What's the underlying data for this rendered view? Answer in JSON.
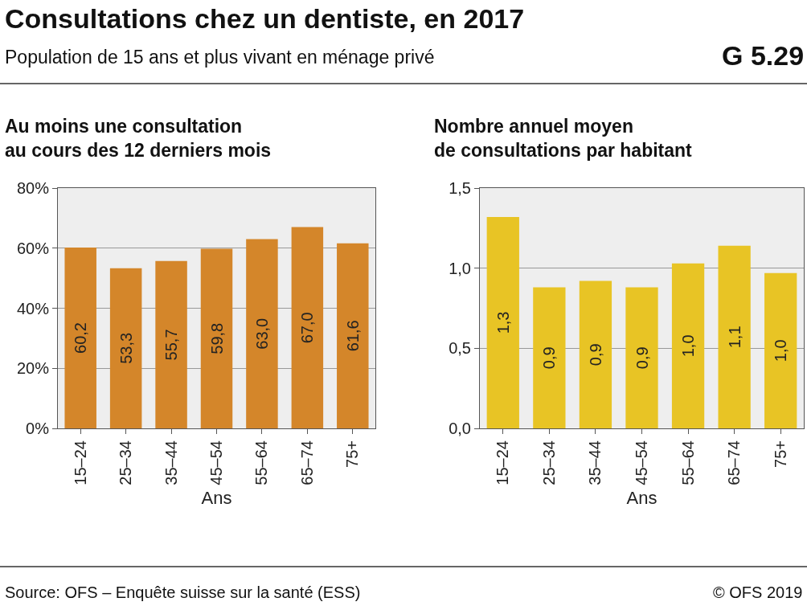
{
  "chart_data": [
    {
      "type": "bar",
      "title": "Au moins une consultation\nau cours des 12 derniers mois",
      "xlabel": "Ans",
      "categories": [
        "15–24",
        "25–34",
        "35–44",
        "45–54",
        "55–64",
        "65–74",
        "75+"
      ],
      "values": [
        60.2,
        53.3,
        55.7,
        59.8,
        63.0,
        67.0,
        61.6
      ],
      "value_labels": [
        "60,2",
        "53,3",
        "55,7",
        "59,8",
        "63,0",
        "67,0",
        "61,6"
      ],
      "color": "#d4862a",
      "ylim": [
        0,
        80
      ],
      "yticks": [
        {
          "value": 0,
          "label": "0%"
        },
        {
          "value": 20,
          "label": "20%"
        },
        {
          "value": 40,
          "label": "40%"
        },
        {
          "value": 60,
          "label": "60%"
        },
        {
          "value": 80,
          "label": "80%"
        }
      ],
      "grid": "y",
      "annotations": [
        "Consultations chez un dentiste, en 2017",
        "Population de 15 ans et plus vivant en ménage privé",
        "G 5.29",
        "Source: OFS – Enquête suisse sur la santé (ESS)",
        "© OFS 2019"
      ]
    },
    {
      "type": "bar",
      "title": "Nombre annuel moyen\nde consultations par habitant",
      "xlabel": "Ans",
      "categories": [
        "15–24",
        "25–34",
        "35–44",
        "45–54",
        "55–64",
        "65–74",
        "75+"
      ],
      "values": [
        1.32,
        0.88,
        0.92,
        0.88,
        1.03,
        1.14,
        0.97
      ],
      "value_labels": [
        "1,3",
        "0,9",
        "0,9",
        "0,9",
        "1,0",
        "1,1",
        "1,0"
      ],
      "color": "#e8c425",
      "ylim": [
        0,
        1.5
      ],
      "yticks": [
        {
          "value": 0,
          "label": "0,0"
        },
        {
          "value": 0.5,
          "label": "0,5"
        },
        {
          "value": 1.0,
          "label": "1,0"
        },
        {
          "value": 1.5,
          "label": "1,5"
        }
      ],
      "grid": "y"
    }
  ]
}
